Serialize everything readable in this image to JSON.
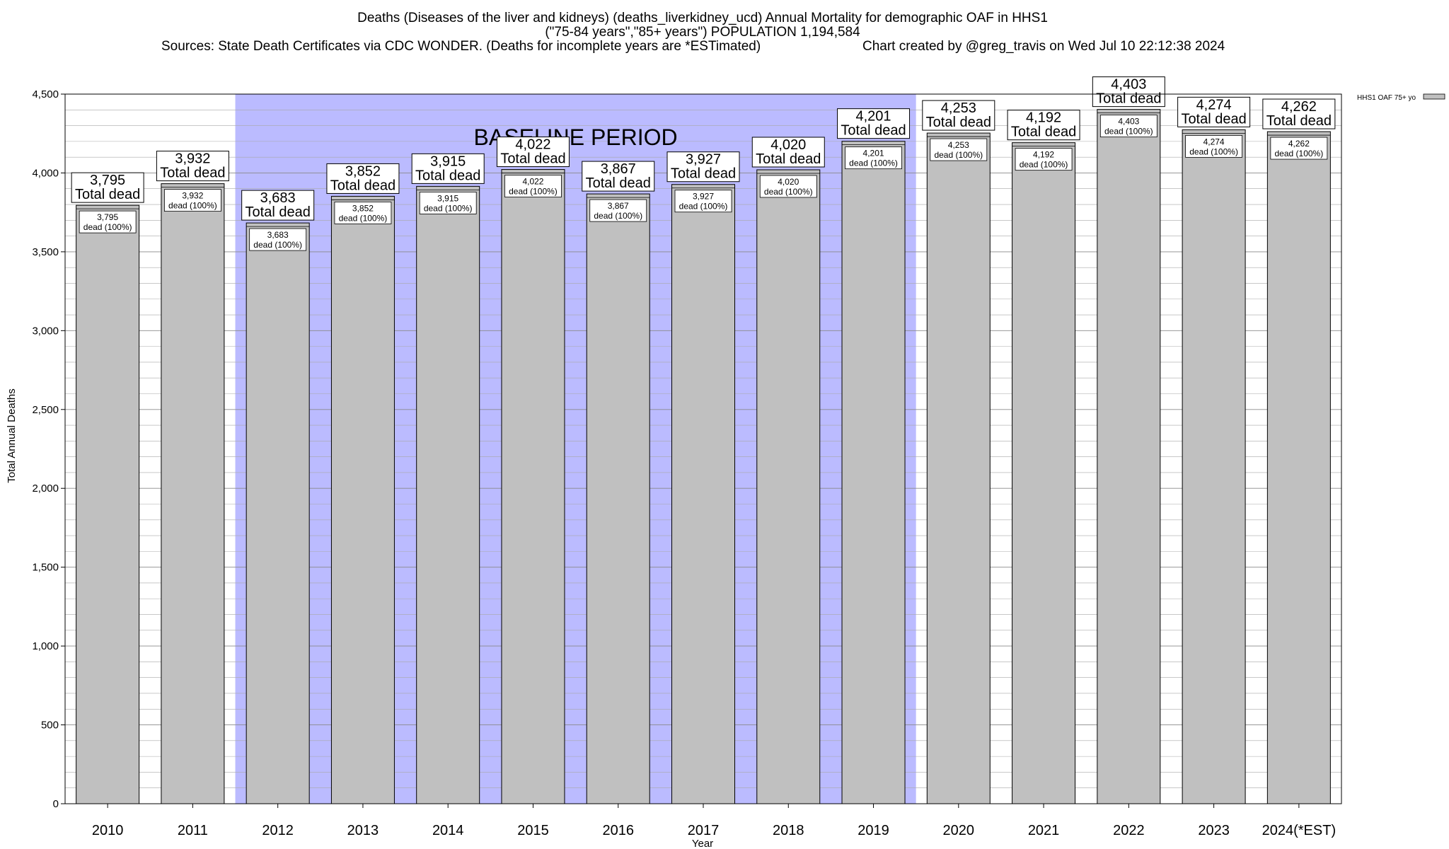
{
  "title": {
    "line1": "Deaths (Diseases of the liver and kidneys) (deaths_liverkidney_ucd) Annual Mortality for demographic OAF in HHS1",
    "line2": "(\"75-84 years\",\"85+ years\") POPULATION 1,194,584",
    "line3_source": "Sources: State Death Certificates via CDC WONDER. (Deaths for incomplete years are *ESTimated)",
    "line3_credit": "Chart created by @greg_travis on Wed Jul 10 22:12:38 2024"
  },
  "chart_data": {
    "type": "bar",
    "categories": [
      "2010",
      "2011",
      "2012",
      "2013",
      "2014",
      "2015",
      "2016",
      "2017",
      "2018",
      "2019",
      "2020",
      "2021",
      "2022",
      "2023",
      "2024(*EST)"
    ],
    "series": [
      {
        "name": "HHS1 OAF 75+ yo",
        "values": [
          3795,
          3932,
          3683,
          3852,
          3915,
          4022,
          3867,
          3927,
          4020,
          4201,
          4253,
          4192,
          4403,
          4274,
          4262
        ],
        "color": "#c0c0c0"
      }
    ],
    "value_labels": [
      "3,795",
      "3,932",
      "3,683",
      "3,852",
      "3,915",
      "4,022",
      "3,867",
      "3,927",
      "4,020",
      "4,201",
      "4,253",
      "4,192",
      "4,403",
      "4,274",
      "4,262"
    ],
    "total_dead_label": "Total dead",
    "pct_label": "dead (100%)",
    "xlabel": "Year",
    "ylabel": "Total Annual Deaths",
    "ylim": [
      0,
      4500
    ],
    "yticks": [
      0,
      500,
      1000,
      1500,
      2000,
      2500,
      3000,
      3500,
      4000,
      4500
    ],
    "ytick_labels": [
      "0",
      "500",
      "1,000",
      "1,500",
      "2,000",
      "2,500",
      "3,000",
      "3,500",
      "4,000",
      "4,500"
    ],
    "grid": true,
    "legend_position": "top-right",
    "baseline": {
      "label": "BASELINE PERIOD",
      "start": "2012",
      "end": "2019",
      "color": "#bbbbff"
    }
  }
}
